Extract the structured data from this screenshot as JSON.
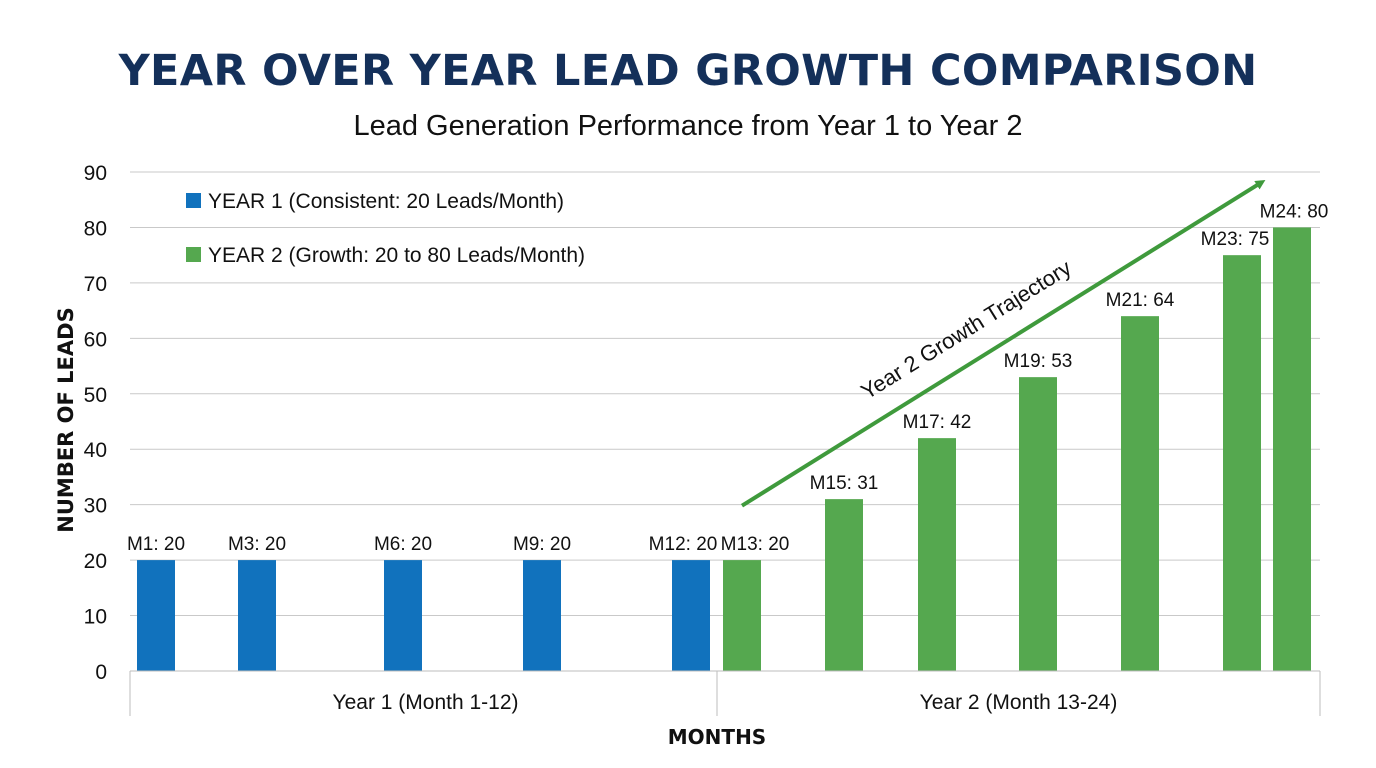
{
  "chart_data": {
    "type": "bar",
    "title": "YEAR OVER YEAR LEAD GROWTH COMPARISON",
    "subtitle": "Lead Generation Performance from Year 1 to Year 2",
    "xlabel": "MONTHS",
    "ylabel": "NUMBER OF LEADS",
    "ylim": [
      0,
      90
    ],
    "yticks": [
      0,
      10,
      20,
      30,
      40,
      50,
      60,
      70,
      80,
      90
    ],
    "grid": true,
    "legend_position": "top-left",
    "groups": [
      {
        "label": "Year 1 (Month 1-12)",
        "months": [
          1,
          12
        ]
      },
      {
        "label": "Year 2 (Month 13-24)",
        "months": [
          13,
          24
        ]
      }
    ],
    "series": [
      {
        "name": "YEAR 1 (Consistent: 20 Leads/Month)",
        "color": "#1172bd",
        "points": [
          {
            "month": 1,
            "value": 20,
            "label": "M1: 20"
          },
          {
            "month": 3,
            "value": 20,
            "label": "M3: 20"
          },
          {
            "month": 6,
            "value": 20,
            "label": "M6: 20"
          },
          {
            "month": 9,
            "value": 20,
            "label": "M9: 20"
          },
          {
            "month": 12,
            "value": 20,
            "label": "M12: 20"
          }
        ]
      },
      {
        "name": "YEAR 2 (Growth: 20 to 80 Leads/Month)",
        "color": "#55a84f",
        "points": [
          {
            "month": 13,
            "value": 20,
            "label": "M13: 20"
          },
          {
            "month": 15,
            "value": 31,
            "label": "M15: 31"
          },
          {
            "month": 17,
            "value": 42,
            "label": "M17: 42"
          },
          {
            "month": 19,
            "value": 53,
            "label": "M19: 53"
          },
          {
            "month": 21,
            "value": 64,
            "label": "M21: 64"
          },
          {
            "month": 23,
            "value": 75,
            "label": "M23: 75"
          },
          {
            "month": 24,
            "value": 80,
            "label": "M24: 80"
          }
        ]
      }
    ],
    "annotation": {
      "text": "Year 2 Growth Trajectory",
      "color": "#3f9a3c",
      "from": {
        "month": 13,
        "value": 30
      },
      "to": {
        "month": 24,
        "value": 88
      }
    }
  }
}
